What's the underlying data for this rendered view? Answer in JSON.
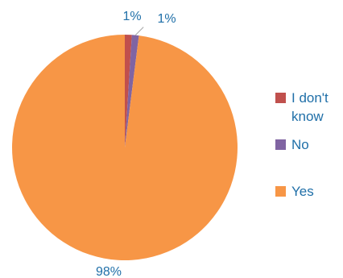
{
  "chart_data": {
    "type": "pie",
    "categories": [
      "I don't know",
      "No",
      "Yes"
    ],
    "values": [
      1,
      1,
      98
    ],
    "labels": [
      "1%",
      "1%",
      "98%"
    ],
    "colors": [
      "#c0504d",
      "#8064a2",
      "#f79646"
    ],
    "legend_position": "right"
  },
  "legend": {
    "items": [
      {
        "label": "I don't know",
        "color": "#c0504d"
      },
      {
        "label": "No",
        "color": "#8064a2"
      },
      {
        "label": "Yes",
        "color": "#f79646"
      }
    ]
  }
}
